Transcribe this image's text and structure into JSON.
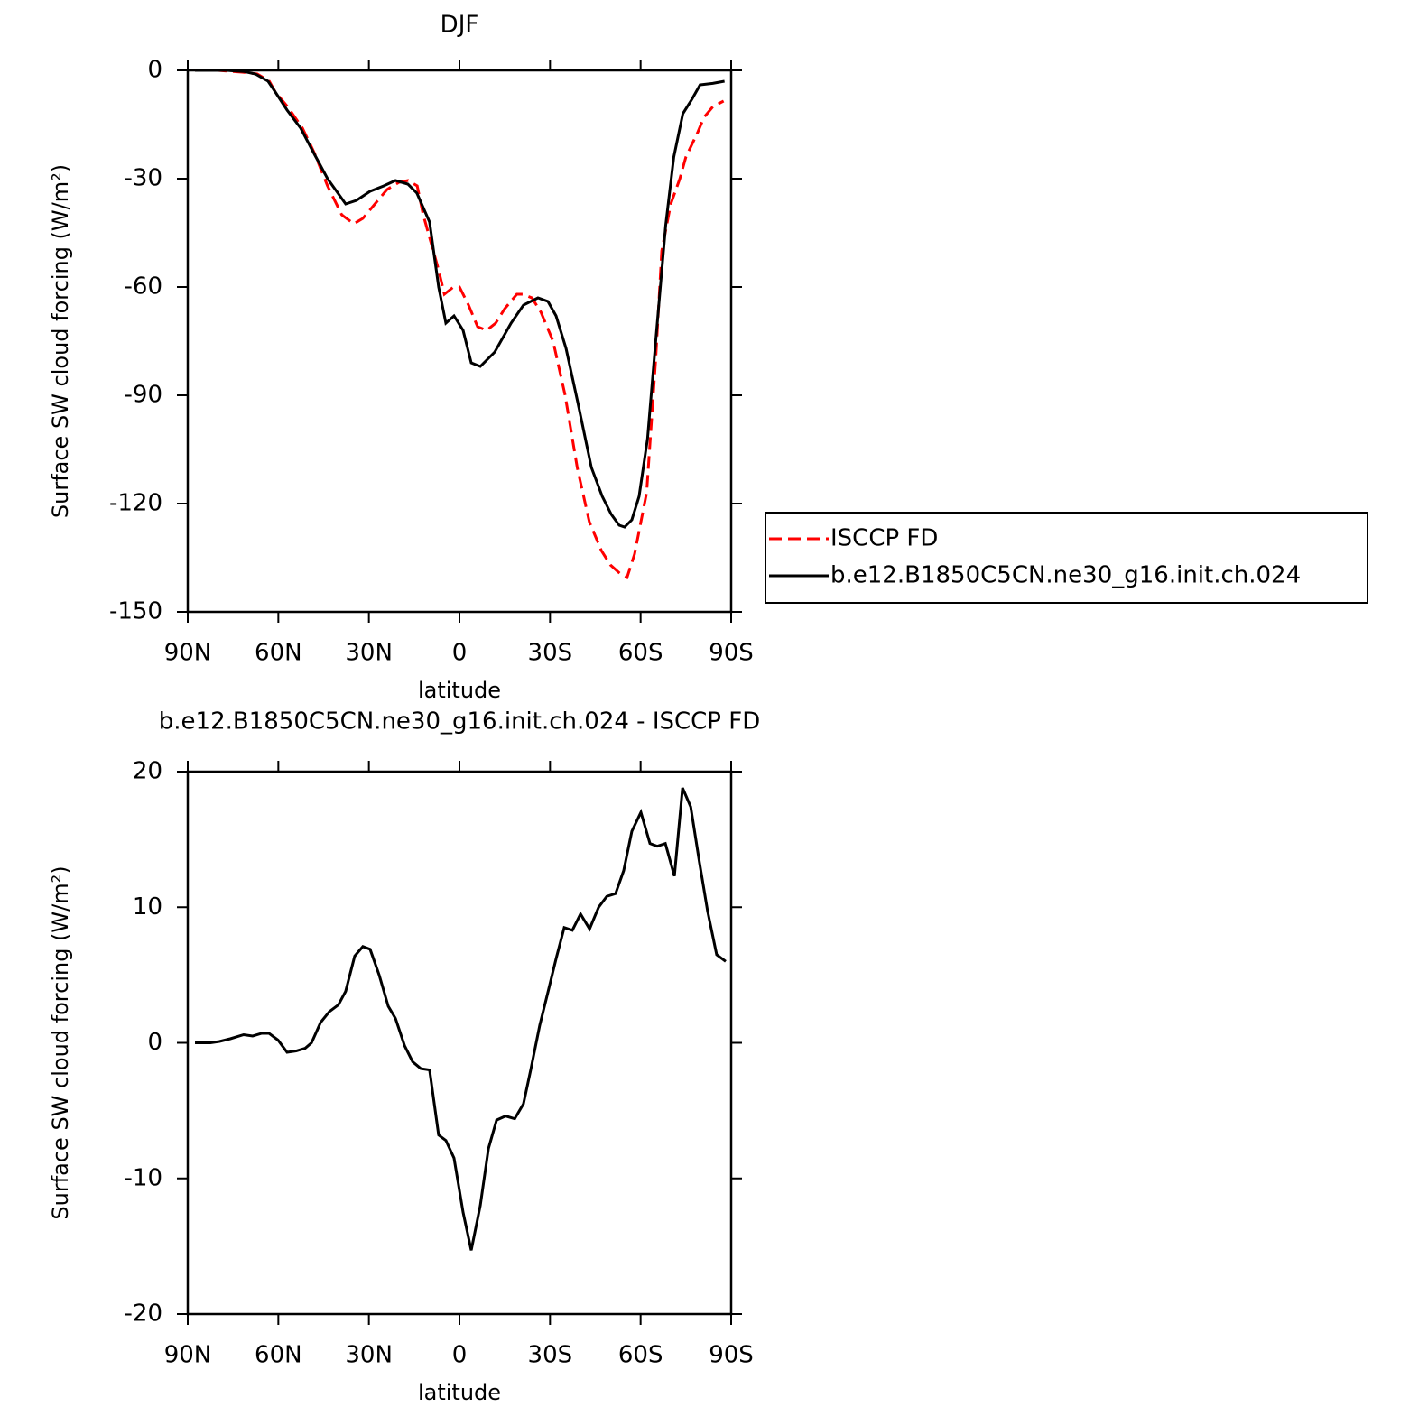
{
  "chart_data": [
    {
      "type": "line",
      "title": "DJF",
      "xlabel": "latitude",
      "ylabel": "Surface SW cloud forcing (W/m²)",
      "xlim": [
        90,
        -90
      ],
      "xticks": [
        {
          "value": 90,
          "label": "90N"
        },
        {
          "value": 60,
          "label": "60N"
        },
        {
          "value": 30,
          "label": "30N"
        },
        0,
        {
          "value": -30,
          "label": "30S"
        },
        {
          "value": -60,
          "label": "60S"
        },
        {
          "value": -90,
          "label": "90S"
        }
      ],
      "ylim": [
        -150,
        0
      ],
      "yticks": [
        0,
        -30,
        -60,
        -90,
        -120,
        -150
      ],
      "legend": "right",
      "series": [
        {
          "name": "ISCCP FD",
          "color": "#ff0000",
          "linestyle": "dashed",
          "x": [
            87.6,
            80,
            72,
            67,
            63,
            61,
            57,
            52,
            48,
            43.7,
            39,
            35,
            32,
            28,
            24,
            20,
            17,
            14,
            12,
            7,
            5,
            2,
            0,
            -3,
            -6,
            -9,
            -12,
            -15,
            -19,
            -21,
            -24,
            -27,
            -31,
            -35,
            -39,
            -43,
            -47,
            -50,
            -54,
            -55.5,
            -58,
            -62,
            -65,
            -67,
            -70,
            -73,
            -75,
            -79,
            -81,
            -84,
            -87.5
          ],
          "values": [
            0,
            0,
            -0.5,
            -1,
            -3,
            -6,
            -10,
            -16,
            -23,
            -32,
            -40,
            -42.5,
            -41,
            -37,
            -33,
            -31,
            -30.5,
            -32,
            -40,
            -55,
            -62,
            -60,
            -60,
            -65,
            -71,
            -72,
            -70,
            -66,
            -62,
            -62,
            -63,
            -67,
            -75,
            -90,
            -110,
            -125,
            -133,
            -137,
            -140,
            -140.5,
            -134,
            -117,
            -80,
            -50,
            -37,
            -30,
            -24,
            -17,
            -13,
            -10,
            -8.5
          ]
        },
        {
          "name": "b.e12.B1850C5CN.ne30_g16.init.ch.024",
          "color": "#000000",
          "linestyle": "solid",
          "x": [
            87.6,
            77.4,
            71.5,
            67.6,
            63.4,
            61,
            57.1,
            52.6,
            48.2,
            43.7,
            37.7,
            34.1,
            29.6,
            25.1,
            21.2,
            17.1,
            14.1,
            9.9,
            6.9,
            4.5,
            1.8,
            -1.2,
            -3.9,
            -6.9,
            -11.7,
            -17.1,
            -21.2,
            -26,
            -29.3,
            -32,
            -35.3,
            -39.2,
            -43.7,
            -47.3,
            -50.3,
            -52.9,
            -54.7,
            -57.1,
            -59.5,
            -62.3,
            -65,
            -68.3,
            -71,
            -74,
            -77,
            -79.7,
            -83.9,
            -87.8
          ],
          "values": [
            0,
            0,
            -0.3,
            -1,
            -3,
            -6,
            -11,
            -16,
            -23,
            -30,
            -37,
            -36,
            -33.5,
            -32,
            -30.5,
            -31.5,
            -34,
            -42,
            -60,
            -70,
            -68,
            -72,
            -81,
            -82,
            -78,
            -70,
            -65,
            -63,
            -64,
            -68,
            -77,
            -92,
            -110,
            -118,
            -123,
            -126,
            -126.5,
            -124.5,
            -118,
            -102,
            -75,
            -43,
            -24,
            -12,
            -8,
            -4,
            -3.6,
            -3
          ]
        }
      ]
    },
    {
      "type": "line",
      "title": "b.e12.B1850C5CN.ne30_g16.init.ch.024 - ISCCP FD",
      "xlabel": "latitude",
      "ylabel": "Surface SW cloud forcing (W/m²)",
      "xlim": [
        90,
        -90
      ],
      "xticks": [
        {
          "value": 90,
          "label": "90N"
        },
        {
          "value": 60,
          "label": "60N"
        },
        {
          "value": 30,
          "label": "30N"
        },
        0,
        {
          "value": -30,
          "label": "30S"
        },
        {
          "value": -60,
          "label": "60S"
        },
        {
          "value": -90,
          "label": "90S"
        }
      ],
      "ylim": [
        -20,
        20
      ],
      "yticks": [
        20,
        10,
        0,
        -10,
        -20
      ],
      "series": [
        {
          "color": "#000000",
          "linestyle": "solid",
          "x": [
            87.6,
            82.5,
            79.5,
            75.9,
            71.5,
            68.5,
            65.5,
            63.1,
            60.1,
            57.1,
            54.1,
            51.1,
            49.0,
            46.0,
            43.1,
            40.1,
            37.7,
            34.7,
            32.0,
            29.6,
            26.6,
            23.6,
            21.2,
            18.2,
            15.5,
            12.8,
            9.9,
            6.9,
            4.5,
            1.8,
            -1.2,
            -3.9,
            -6.9,
            -9.6,
            -12.3,
            -15.3,
            -18.3,
            -21.2,
            -23.6,
            -26.6,
            -29.6,
            -32.0,
            -34.7,
            -37.4,
            -40.1,
            -43.1,
            -46.1,
            -48.8,
            -51.7,
            -54.4,
            -57.1,
            -60.1,
            -63.1,
            -65.5,
            -68.2,
            -71.2,
            -73.9,
            -76.6,
            -79.5,
            -82.2,
            -85.2,
            -88.2
          ],
          "values": [
            0,
            0,
            0.1,
            0.3,
            0.6,
            0.5,
            0.7,
            0.7,
            0.2,
            -0.7,
            -0.6,
            -0.4,
            0,
            1.5,
            2.3,
            2.8,
            3.8,
            6.4,
            7.1,
            6.9,
            5,
            2.7,
            1.8,
            -0.2,
            -1.4,
            -1.9,
            -2,
            -6.8,
            -7.2,
            -8.5,
            -12.5,
            -15.3,
            -12,
            -7.8,
            -5.7,
            -5.4,
            -5.6,
            -4.5,
            -2,
            1.3,
            4,
            6.2,
            8.5,
            8.3,
            9.5,
            8.4,
            10,
            10.8,
            11,
            12.7,
            15.6,
            17,
            14.7,
            14.5,
            14.7,
            12.3,
            18.8,
            17.4,
            13.3,
            9.7,
            6.5,
            6
          ]
        }
      ]
    }
  ]
}
